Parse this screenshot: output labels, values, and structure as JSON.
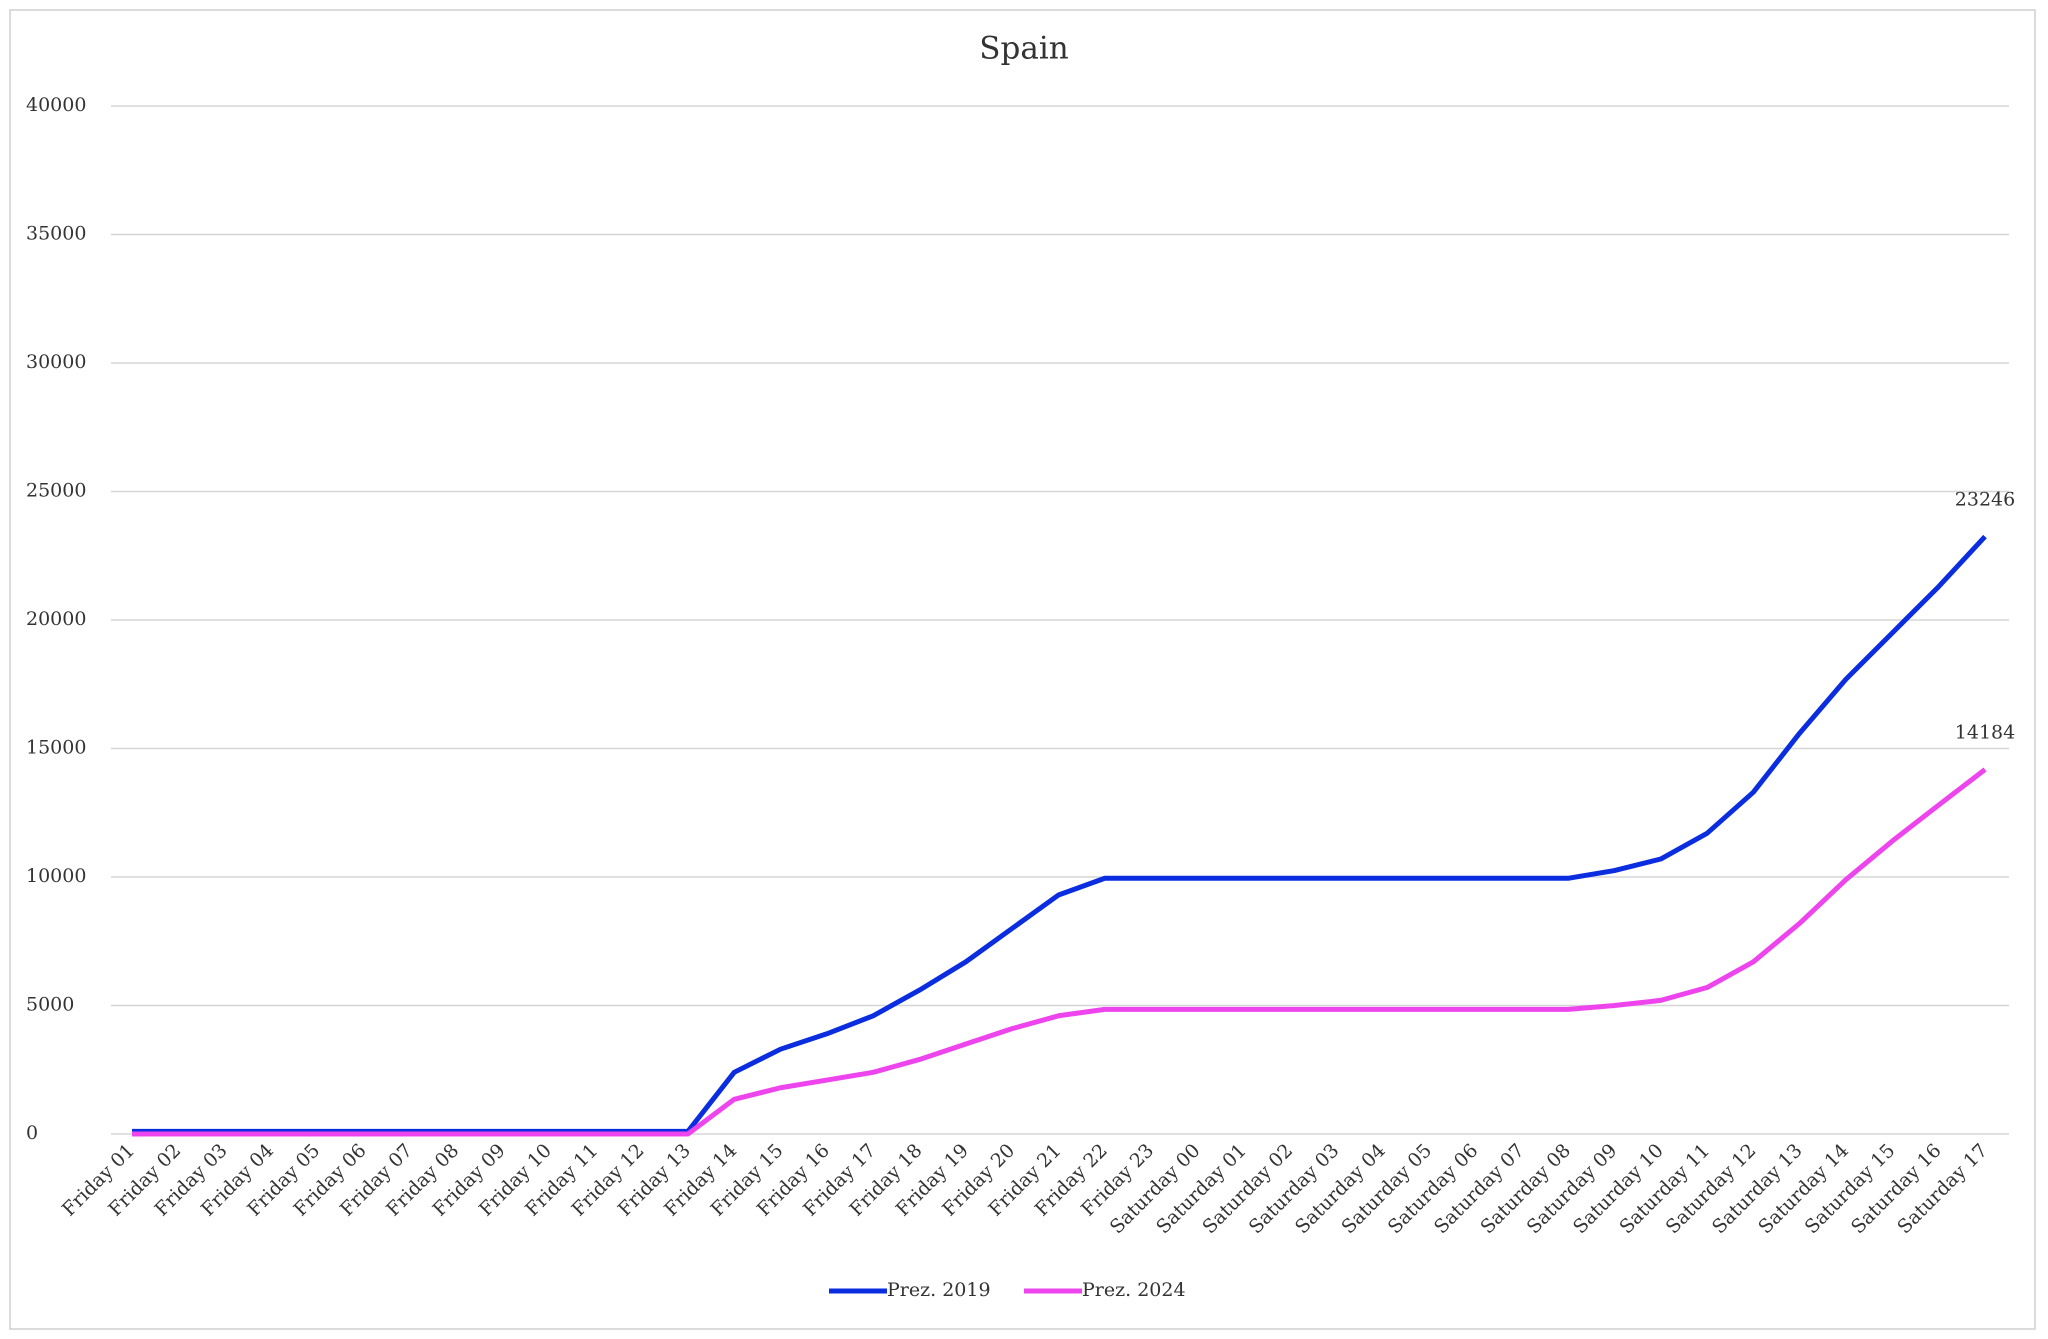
{
  "chart_data": {
    "type": "line",
    "title": "Spain",
    "categories": [
      "Friday 01",
      "Friday 02",
      "Friday 03",
      "Friday 04",
      "Friday 05",
      "Friday 06",
      "Friday 07",
      "Friday 08",
      "Friday 09",
      "Friday 10",
      "Friday 11",
      "Friday 12",
      "Friday 13",
      "Friday 14",
      "Friday 15",
      "Friday 16",
      "Friday 17",
      "Friday 18",
      "Friday 19",
      "Friday 20",
      "Friday 21",
      "Friday 22",
      "Friday 23",
      "Saturday 00",
      "Saturday 01",
      "Saturday 02",
      "Saturday 03",
      "Saturday 04",
      "Saturday 05",
      "Saturday 06",
      "Saturday 07",
      "Saturday 08",
      "Saturday 09",
      "Saturday 10",
      "Saturday 11",
      "Saturday 12",
      "Saturday 13",
      "Saturday 14",
      "Saturday 15",
      "Saturday 16",
      "Saturday 17"
    ],
    "series": [
      {
        "name": "Prez. 2019",
        "color": "#0a2de0",
        "values": [
          100,
          100,
          100,
          100,
          100,
          100,
          100,
          100,
          100,
          100,
          100,
          100,
          100,
          2400,
          3300,
          3900,
          4600,
          5600,
          6700,
          8000,
          9300,
          9950,
          9950,
          9950,
          9950,
          9950,
          9950,
          9950,
          9950,
          9950,
          9950,
          9950,
          10250,
          10700,
          11700,
          13300,
          15600,
          17700,
          19500,
          21300,
          23246
        ]
      },
      {
        "name": "Prez. 2024",
        "color": "#ee44ee",
        "values": [
          0,
          0,
          0,
          0,
          0,
          0,
          0,
          0,
          0,
          0,
          0,
          0,
          0,
          1350,
          1800,
          2100,
          2400,
          2900,
          3500,
          4100,
          4600,
          4850,
          4850,
          4850,
          4850,
          4850,
          4850,
          4850,
          4850,
          4850,
          4850,
          4850,
          5000,
          5200,
          5700,
          6700,
          8200,
          9900,
          11400,
          12800,
          14184
        ]
      }
    ],
    "ylim": [
      0,
      40000
    ],
    "yticks": [
      0,
      5000,
      10000,
      15000,
      20000,
      25000,
      30000,
      35000,
      40000
    ],
    "grid": true,
    "legend": "bottom",
    "data_labels": "last"
  }
}
